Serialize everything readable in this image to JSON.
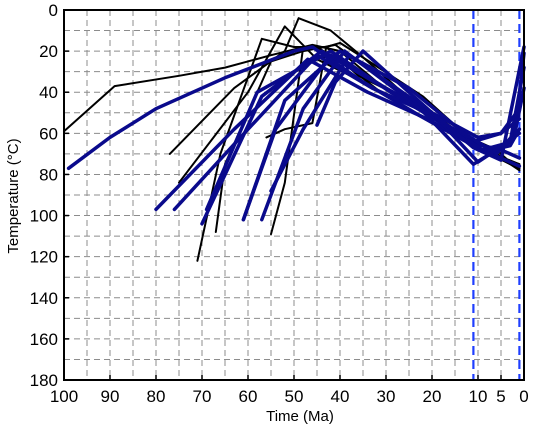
{
  "chart_data": {
    "type": "line",
    "title": "",
    "xlabel": "Time (Ma)",
    "ylabel": "Temperature (°C)",
    "xlim": [
      100,
      0
    ],
    "ylim": [
      0,
      180
    ],
    "x_ticks": [
      100,
      90,
      80,
      70,
      60,
      50,
      40,
      30,
      20,
      10,
      5,
      0
    ],
    "x_tick_labels": [
      "100",
      "90",
      "80",
      "70",
      "60",
      "50",
      "40",
      "30",
      "20",
      "10",
      "5",
      "0"
    ],
    "y_ticks": [
      0,
      20,
      40,
      60,
      80,
      100,
      120,
      140,
      160,
      180
    ],
    "y_tick_labels": [
      "0",
      "20",
      "40",
      "60",
      "80",
      "100",
      "120",
      "140",
      "160",
      "180"
    ],
    "x_grid": [
      95,
      85,
      75,
      65,
      55,
      45,
      35,
      25,
      15
    ],
    "y_grid": [
      10,
      30,
      50,
      70,
      90,
      110,
      130,
      150,
      170
    ],
    "grid": true,
    "grid_style": "dashed",
    "reference_lines": [
      {
        "x": 11,
        "color": "#1f3fff",
        "style": "dashed"
      },
      {
        "x": 1,
        "color": "#1f3fff",
        "style": "dashed"
      }
    ],
    "series": [
      {
        "color": "#000000",
        "width": 2,
        "points": [
          [
            100,
            59
          ],
          [
            89,
            37
          ],
          [
            75,
            32
          ],
          [
            65,
            28
          ],
          [
            55,
            22
          ],
          [
            46,
            17
          ],
          [
            40,
            20
          ],
          [
            32,
            35
          ],
          [
            20,
            52
          ],
          [
            11,
            66
          ],
          [
            5,
            72
          ],
          [
            1,
            78
          ]
        ]
      },
      {
        "color": "#000000",
        "width": 2,
        "points": [
          [
            77,
            70
          ],
          [
            63,
            38
          ],
          [
            52,
            20
          ],
          [
            49,
            4
          ],
          [
            42,
            10
          ],
          [
            35,
            23
          ],
          [
            25,
            43
          ],
          [
            15,
            58
          ],
          [
            10,
            67
          ],
          [
            5,
            71
          ],
          [
            1,
            77
          ]
        ]
      },
      {
        "color": "#000000",
        "width": 2,
        "points": [
          [
            75,
            84
          ],
          [
            60,
            40
          ],
          [
            52,
            8
          ],
          [
            45,
            24
          ],
          [
            35,
            35
          ],
          [
            24,
            50
          ],
          [
            11,
            66
          ],
          [
            5,
            72
          ],
          [
            1,
            75
          ]
        ]
      },
      {
        "color": "#000000",
        "width": 2,
        "points": [
          [
            71,
            122
          ],
          [
            66,
            70
          ],
          [
            57,
            14
          ],
          [
            50,
            18
          ],
          [
            45,
            18
          ],
          [
            38,
            28
          ],
          [
            30,
            42
          ],
          [
            20,
            55
          ],
          [
            11,
            66
          ],
          [
            3,
            75
          ],
          [
            1,
            77
          ]
        ]
      },
      {
        "color": "#000000",
        "width": 2,
        "points": [
          [
            67,
            108
          ],
          [
            65,
            75
          ],
          [
            55,
            25
          ],
          [
            48,
            20
          ],
          [
            41,
            17
          ],
          [
            33,
            30
          ],
          [
            22,
            48
          ],
          [
            11,
            66
          ],
          [
            1,
            75
          ]
        ]
      },
      {
        "color": "#000000",
        "width": 2,
        "points": [
          [
            55,
            109
          ],
          [
            52,
            84
          ],
          [
            48,
            18
          ],
          [
            43,
            18
          ],
          [
            36,
            32
          ],
          [
            25,
            44
          ],
          [
            14,
            60
          ],
          [
            6,
            68
          ],
          [
            1,
            78
          ]
        ]
      },
      {
        "color": "#000000",
        "width": 2,
        "points": [
          [
            56,
            62
          ],
          [
            52,
            58
          ],
          [
            46,
            55
          ],
          [
            43,
            18
          ],
          [
            40,
            16
          ],
          [
            33,
            26
          ],
          [
            22,
            42
          ],
          [
            12,
            62
          ],
          [
            5,
            72
          ],
          [
            1,
            77
          ]
        ]
      },
      {
        "color": "#0a0a8c",
        "width": 3.5,
        "points": [
          [
            99,
            77
          ],
          [
            90,
            62
          ],
          [
            80,
            48
          ],
          [
            65,
            33
          ],
          [
            50,
            20
          ],
          [
            46,
            18
          ],
          [
            35,
            35
          ],
          [
            23,
            51
          ],
          [
            11,
            66
          ],
          [
            4,
            73
          ],
          [
            1,
            76
          ]
        ]
      },
      {
        "color": "#0a0a8c",
        "width": 3.5,
        "points": [
          [
            80,
            97
          ],
          [
            63,
            58
          ],
          [
            47,
            24
          ],
          [
            34,
            40
          ],
          [
            22,
            52
          ],
          [
            11,
            65
          ],
          [
            5,
            68
          ],
          [
            1,
            72
          ]
        ]
      },
      {
        "color": "#0a0a8c",
        "width": 3.5,
        "points": [
          [
            76,
            97
          ],
          [
            60,
            58
          ],
          [
            45,
            22
          ],
          [
            33,
            38
          ],
          [
            21,
            50
          ],
          [
            11,
            64
          ],
          [
            5,
            60
          ],
          [
            1,
            48
          ]
        ]
      },
      {
        "color": "#0a0a8c",
        "width": 3.5,
        "points": [
          [
            70,
            104
          ],
          [
            57,
            42
          ],
          [
            44,
            20
          ],
          [
            31,
            37
          ],
          [
            20,
            50
          ],
          [
            10,
            62
          ],
          [
            5,
            60
          ],
          [
            1,
            53
          ]
        ]
      },
      {
        "color": "#0a0a8c",
        "width": 3.5,
        "points": [
          [
            69,
            97
          ],
          [
            58,
            40
          ],
          [
            42,
            20
          ],
          [
            29,
            40
          ],
          [
            18,
            55
          ],
          [
            9,
            68
          ],
          [
            4,
            65
          ],
          [
            1,
            60
          ]
        ]
      },
      {
        "color": "#0a0a8c",
        "width": 3.5,
        "points": [
          [
            61,
            102
          ],
          [
            54,
            58
          ],
          [
            42,
            22
          ],
          [
            27,
            42
          ],
          [
            16,
            57
          ],
          [
            7,
            68
          ],
          [
            3,
            66
          ],
          [
            1,
            58
          ]
        ]
      },
      {
        "color": "#0a0a8c",
        "width": 3.5,
        "points": [
          [
            61,
            102
          ],
          [
            52,
            44
          ],
          [
            40,
            20
          ],
          [
            25,
            38
          ],
          [
            13,
            60
          ],
          [
            6,
            70
          ],
          [
            2,
            60
          ],
          [
            0,
            38
          ]
        ]
      },
      {
        "color": "#0a0a8c",
        "width": 3.5,
        "points": [
          [
            57,
            102
          ],
          [
            48,
            48
          ],
          [
            39,
            20
          ],
          [
            23,
            47
          ],
          [
            11,
            75
          ],
          [
            3,
            64
          ],
          [
            0,
            28
          ]
        ]
      },
      {
        "color": "#0a0a8c",
        "width": 3.5,
        "points": [
          [
            55,
            88
          ],
          [
            48,
            58
          ],
          [
            38,
            22
          ],
          [
            20,
            50
          ],
          [
            10,
            74
          ],
          [
            2,
            62
          ],
          [
            0,
            21
          ]
        ]
      },
      {
        "color": "#0a0a8c",
        "width": 3.5,
        "points": [
          [
            45,
            56
          ],
          [
            41,
            35
          ],
          [
            35,
            20
          ],
          [
            20,
            50
          ],
          [
            11,
            67
          ],
          [
            5,
            73
          ],
          [
            0,
            18
          ]
        ]
      }
    ]
  }
}
